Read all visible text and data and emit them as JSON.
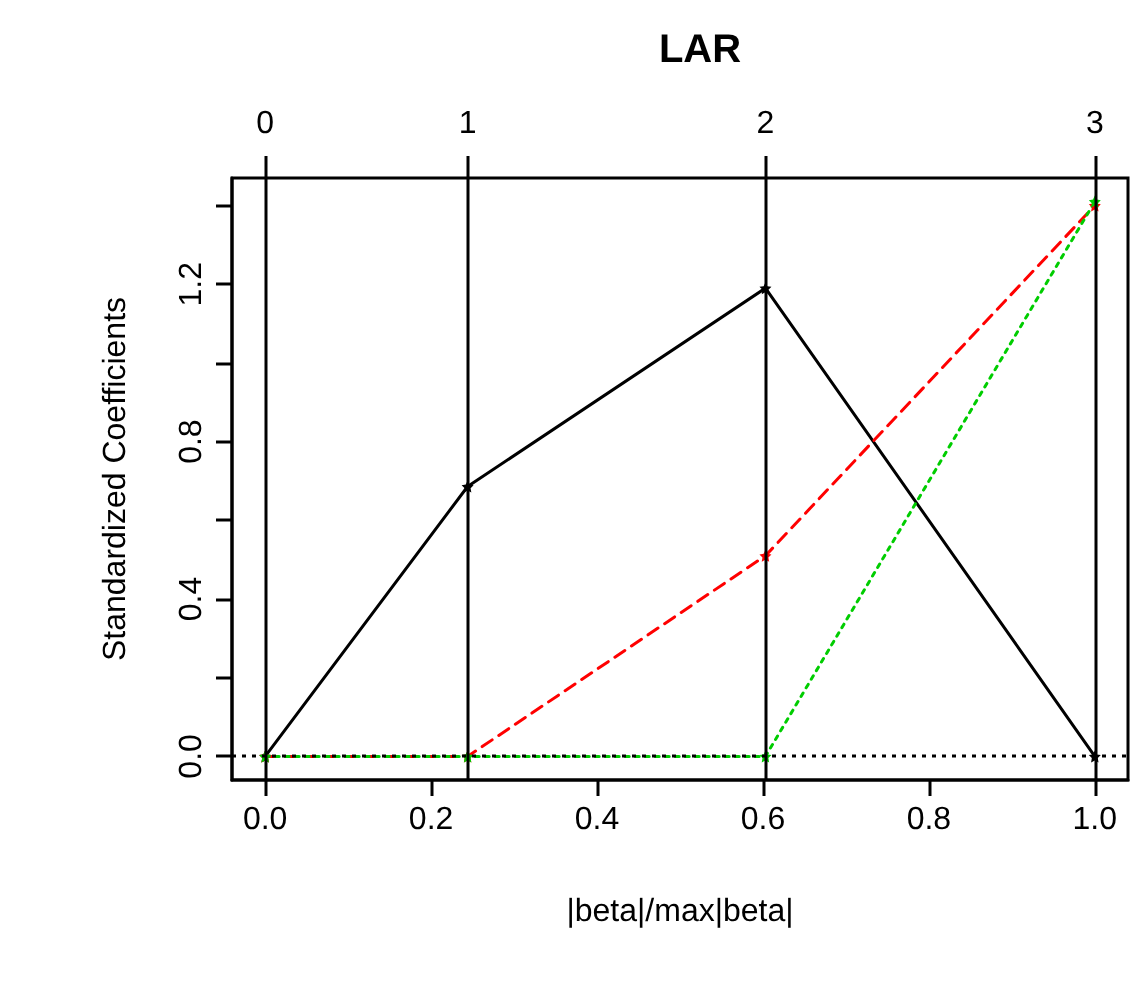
{
  "chart_data": {
    "type": "line",
    "title": "LAR",
    "xlabel": "|beta|/max|beta|",
    "ylabel": "Standardized Coefficients",
    "x": [
      0,
      0.244,
      0.603,
      1.0
    ],
    "series": [
      {
        "color": "#000000",
        "values": [
          0,
          0.686,
          1.19,
          0.0
        ],
        "line_style": "solid"
      },
      {
        "color": "#ff0000",
        "values": [
          0,
          0,
          0.51,
          1.4
        ],
        "line_style": "dashed"
      },
      {
        "color": "#00cd00",
        "values": [
          0,
          0,
          0,
          1.41
        ],
        "line_style": "dotted"
      }
    ],
    "xlim": [
      -0.04,
      1.04
    ],
    "xticks": [
      {
        "value": 0,
        "label": "0.0"
      },
      0.2,
      0.4,
      0.6,
      0.8,
      {
        "value": 1,
        "label": "1.0"
      }
    ],
    "ylim": [
      -0.06,
      1.47
    ],
    "yticks": [
      {
        "value": 0,
        "label": "0.0"
      },
      {
        "value": 0.2,
        "label": null
      },
      0.4,
      {
        "value": 0.6,
        "label": null
      },
      0.8,
      {
        "value": 1.0,
        "label": null
      },
      1.2,
      {
        "value": 1.4,
        "label": null
      }
    ],
    "ref_lines": [
      {
        "axis": "x",
        "value": 0,
        "color": "#000000",
        "line_style": "solid"
      },
      {
        "axis": "x",
        "value": 0.244,
        "color": "#000000",
        "line_style": "solid"
      },
      {
        "axis": "x",
        "value": 0.603,
        "color": "#000000",
        "line_style": "solid"
      },
      {
        "axis": "x",
        "value": 1.0,
        "color": "#000000",
        "line_style": "solid"
      },
      {
        "axis": "y",
        "value": 0,
        "color": "#000000",
        "line_style": "dotted"
      }
    ],
    "annotations": [
      "0",
      "1",
      "2",
      "3"
    ],
    "marker": "star",
    "grid": false
  }
}
